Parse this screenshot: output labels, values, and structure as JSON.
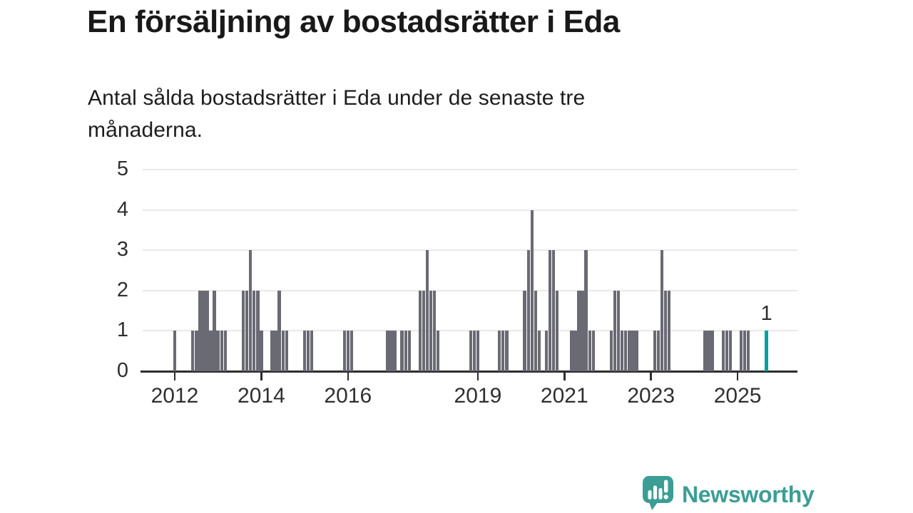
{
  "page": {
    "background": "#ffffff"
  },
  "header": {
    "title": "En försäljning av bostadsrätter i Eda",
    "subtitle_lines": [
      "Antal sålda bostadsrätter i Eda under de senaste tre",
      "månaderna."
    ]
  },
  "chart_data": {
    "type": "bar",
    "title": "En försäljning av bostadsrätter i Eda",
    "subtitle": "Antal sålda bostadsrätter i Eda under de senaste tre månaderna.",
    "xlabel": "",
    "ylabel": "",
    "ylim": [
      0,
      5
    ],
    "yticks": [
      0,
      1,
      2,
      3,
      4,
      5
    ],
    "xticks": [
      2012,
      2014,
      2016,
      2019,
      2021,
      2023,
      2025
    ],
    "x_axis_span": {
      "start_month": "2011-04",
      "end_month": "2026-05"
    },
    "grid": true,
    "legend": false,
    "bar_unit": "antal sålda bostadsrätter per månad",
    "colors": {
      "bar": "#6a6a74",
      "highlight": "#00a19d",
      "grid": "#e9e9e9",
      "axis": "#2d2d2d",
      "label": "#2f2f2f"
    },
    "highlight": {
      "month": "2025-09",
      "value": 1,
      "label": "1"
    },
    "points": {
      "columns": [
        "month",
        "value"
      ],
      "rows": [
        [
          "2012-01",
          1
        ],
        [
          "2012-06",
          1
        ],
        [
          "2012-07",
          1
        ],
        [
          "2012-08",
          2
        ],
        [
          "2012-09",
          2
        ],
        [
          "2012-10",
          2
        ],
        [
          "2012-11",
          1
        ],
        [
          "2012-12",
          2
        ],
        [
          "2013-01",
          1
        ],
        [
          "2013-02",
          1
        ],
        [
          "2013-03",
          1
        ],
        [
          "2013-08",
          2
        ],
        [
          "2013-09",
          2
        ],
        [
          "2013-10",
          3
        ],
        [
          "2013-11",
          2
        ],
        [
          "2013-12",
          2
        ],
        [
          "2014-01",
          1
        ],
        [
          "2014-04",
          1
        ],
        [
          "2014-05",
          1
        ],
        [
          "2014-06",
          2
        ],
        [
          "2014-07",
          1
        ],
        [
          "2014-08",
          1
        ],
        [
          "2015-01",
          1
        ],
        [
          "2015-02",
          1
        ],
        [
          "2015-03",
          1
        ],
        [
          "2015-12",
          1
        ],
        [
          "2016-01",
          1
        ],
        [
          "2016-02",
          1
        ],
        [
          "2016-12",
          1
        ],
        [
          "2017-01",
          1
        ],
        [
          "2017-02",
          1
        ],
        [
          "2017-04",
          1
        ],
        [
          "2017-05",
          1
        ],
        [
          "2017-06",
          1
        ],
        [
          "2017-09",
          2
        ],
        [
          "2017-10",
          2
        ],
        [
          "2017-11",
          3
        ],
        [
          "2017-12",
          2
        ],
        [
          "2018-01",
          2
        ],
        [
          "2018-02",
          1
        ],
        [
          "2018-11",
          1
        ],
        [
          "2018-12",
          1
        ],
        [
          "2019-01",
          1
        ],
        [
          "2019-07",
          1
        ],
        [
          "2019-08",
          1
        ],
        [
          "2019-09",
          1
        ],
        [
          "2020-02",
          2
        ],
        [
          "2020-03",
          3
        ],
        [
          "2020-04",
          4
        ],
        [
          "2020-05",
          2
        ],
        [
          "2020-06",
          1
        ],
        [
          "2020-08",
          1
        ],
        [
          "2020-09",
          3
        ],
        [
          "2020-10",
          3
        ],
        [
          "2020-11",
          2
        ],
        [
          "2021-03",
          1
        ],
        [
          "2021-04",
          1
        ],
        [
          "2021-05",
          2
        ],
        [
          "2021-06",
          2
        ],
        [
          "2021-07",
          3
        ],
        [
          "2021-08",
          1
        ],
        [
          "2021-09",
          1
        ],
        [
          "2022-02",
          1
        ],
        [
          "2022-03",
          2
        ],
        [
          "2022-04",
          2
        ],
        [
          "2022-05",
          1
        ],
        [
          "2022-06",
          1
        ],
        [
          "2022-07",
          1
        ],
        [
          "2022-08",
          1
        ],
        [
          "2022-09",
          1
        ],
        [
          "2023-02",
          1
        ],
        [
          "2023-03",
          1
        ],
        [
          "2023-04",
          3
        ],
        [
          "2023-05",
          2
        ],
        [
          "2023-06",
          2
        ],
        [
          "2024-04",
          1
        ],
        [
          "2024-05",
          1
        ],
        [
          "2024-06",
          1
        ],
        [
          "2024-09",
          1
        ],
        [
          "2024-10",
          1
        ],
        [
          "2024-11",
          1
        ],
        [
          "2025-02",
          1
        ],
        [
          "2025-03",
          1
        ],
        [
          "2025-04",
          1
        ],
        [
          "2025-09",
          1
        ]
      ]
    }
  },
  "branding": {
    "name": "Newsworthy",
    "color": "#3b9e95",
    "icon": "newsworthy-speech-bubble-chart-icon"
  }
}
